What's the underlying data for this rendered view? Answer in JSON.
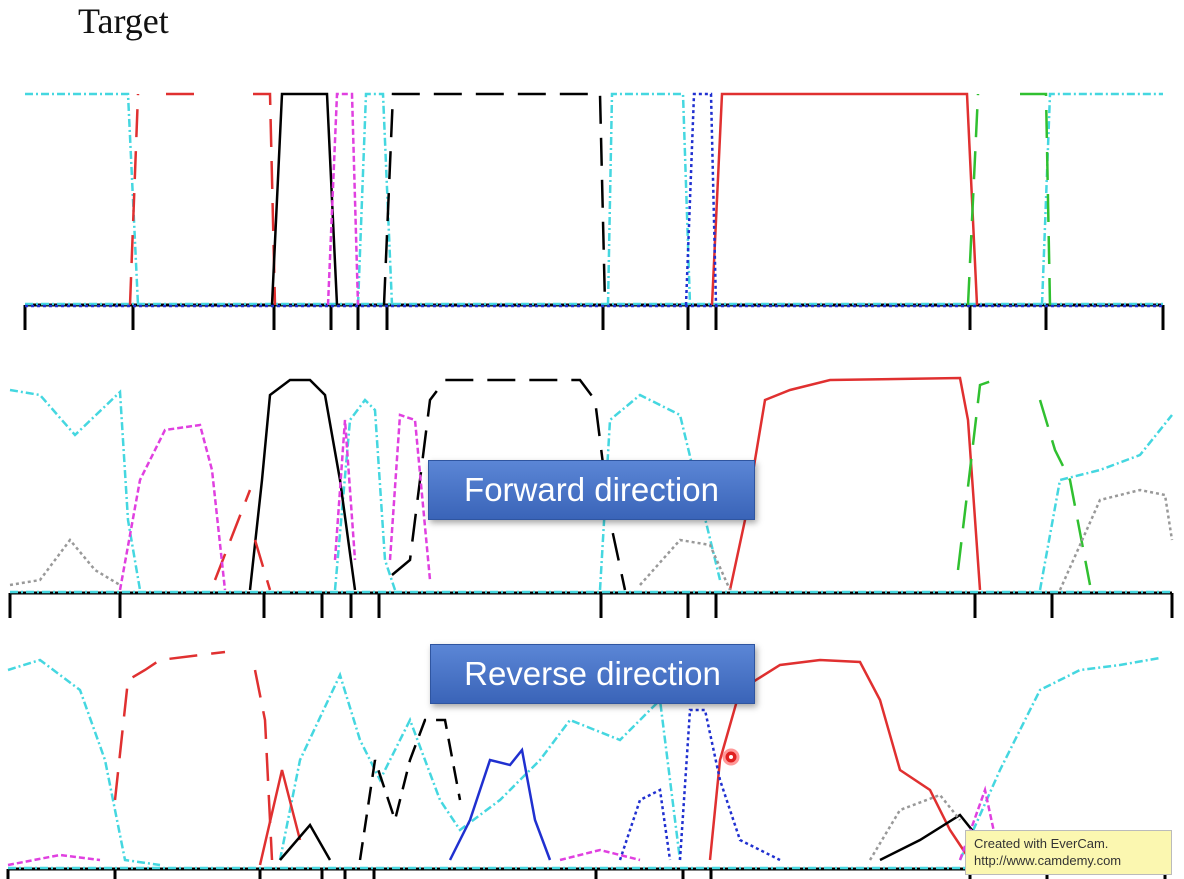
{
  "title": "Target",
  "labels": {
    "forward": "Forward direction",
    "reverse": "Reverse direction"
  },
  "watermark": {
    "line1": "Created with EverCam.",
    "line2": "http://www.camdemy.com"
  }
}
